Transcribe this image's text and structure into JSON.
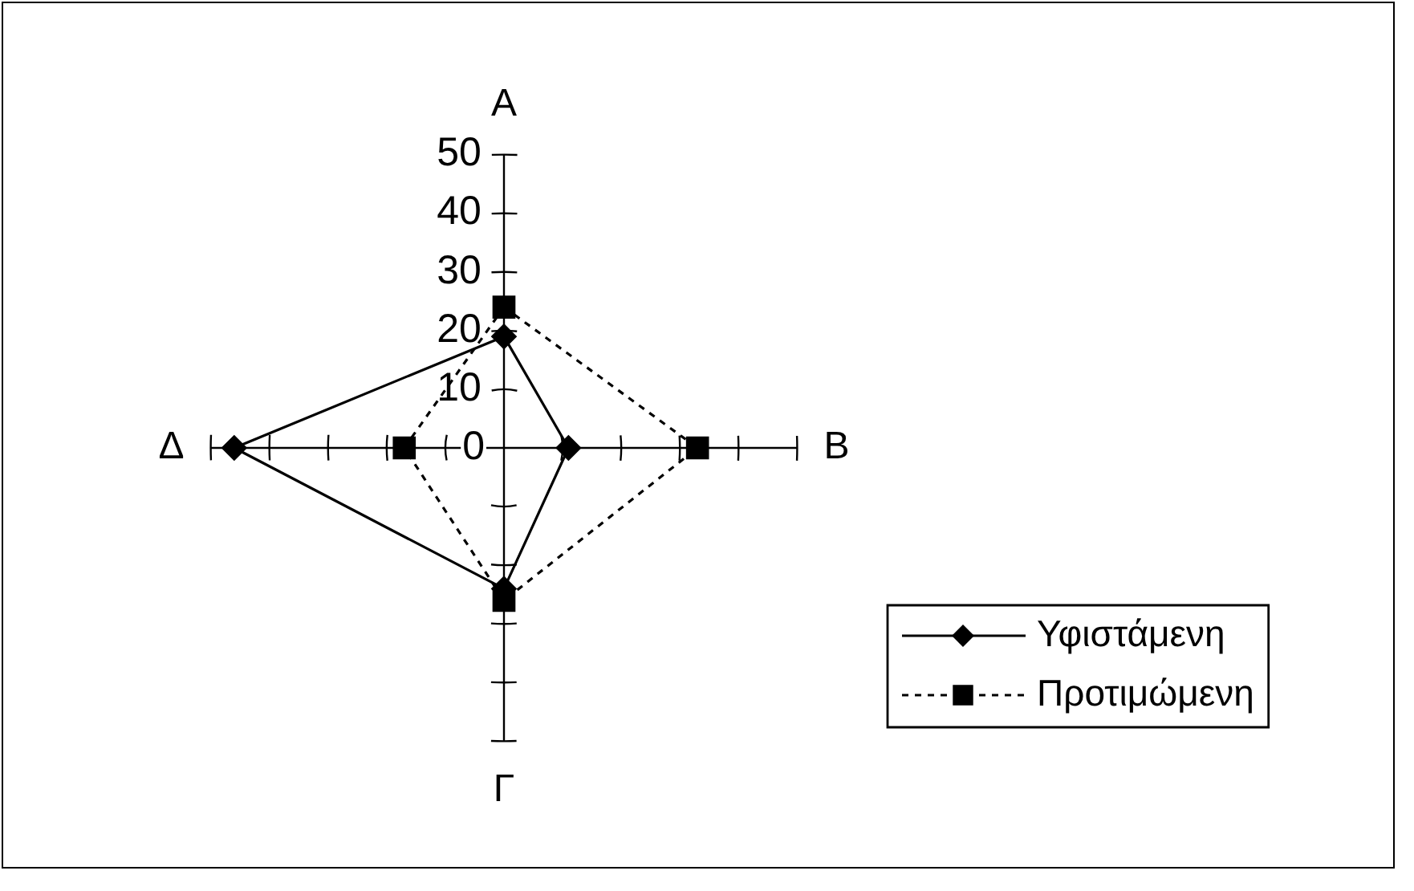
{
  "chart_data": {
    "type": "radar",
    "categories": [
      "A",
      "B",
      "Γ",
      "Δ"
    ],
    "series": [
      {
        "name": "Υφιστάμενη",
        "color": "#000000",
        "values": [
          19,
          11,
          24,
          46
        ],
        "marker": "diamond",
        "line_style": "solid"
      },
      {
        "name": "Προτιμώμενη",
        "color": "#000000",
        "values": [
          24,
          33,
          26,
          17
        ],
        "marker": "square",
        "line_style": "dashed"
      }
    ],
    "ylim": [
      0,
      50
    ],
    "yticks": [
      0,
      10,
      20,
      30,
      40,
      50
    ],
    "grid": false,
    "legend": "right"
  }
}
